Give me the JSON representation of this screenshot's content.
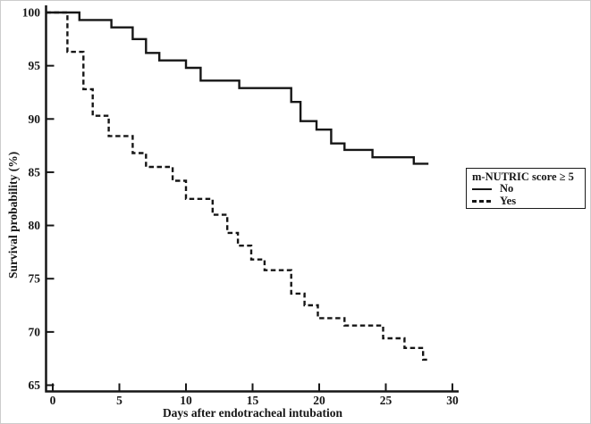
{
  "chart_data": {
    "type": "line",
    "subtype": "kaplan-meier-step",
    "title": "",
    "xlabel": "Days after endotracheal intubation",
    "ylabel": "Survival probability (%)",
    "xlim": [
      0,
      30
    ],
    "ylim": [
      65,
      100
    ],
    "xticks": [
      0,
      5,
      10,
      15,
      20,
      25,
      30
    ],
    "yticks": [
      65,
      70,
      75,
      80,
      85,
      90,
      95,
      100
    ],
    "grid": false,
    "line_color": "#161616",
    "legend": {
      "title": "m-NUTRIC score ≥ 5",
      "position": "right-middle",
      "items": [
        {
          "label": "No",
          "line_style": "solid"
        },
        {
          "label": "Yes",
          "line_style": "dashed"
        }
      ]
    },
    "series": [
      {
        "name": "No",
        "line_style": "solid",
        "step_points": [
          [
            0,
            100
          ],
          [
            2,
            99.3
          ],
          [
            4.4,
            98.6
          ],
          [
            6,
            97.5
          ],
          [
            7,
            96.2
          ],
          [
            8,
            95.5
          ],
          [
            10,
            94.8
          ],
          [
            11.1,
            93.6
          ],
          [
            14,
            92.9
          ],
          [
            17.9,
            91.6
          ],
          [
            18.6,
            89.8
          ],
          [
            19.8,
            89.0
          ],
          [
            20.9,
            87.7
          ],
          [
            21.9,
            87.1
          ],
          [
            24,
            86.4
          ],
          [
            27.1,
            85.8
          ]
        ],
        "end_day": 28.2
      },
      {
        "name": "Yes",
        "line_style": "dashed",
        "step_points": [
          [
            0,
            100
          ],
          [
            1.1,
            96.3
          ],
          [
            2.3,
            92.8
          ],
          [
            3,
            90.3
          ],
          [
            4.2,
            88.4
          ],
          [
            6,
            86.8
          ],
          [
            7,
            85.5
          ],
          [
            9,
            84.2
          ],
          [
            10,
            82.5
          ],
          [
            12,
            81.0
          ],
          [
            13.1,
            79.3
          ],
          [
            13.9,
            78.1
          ],
          [
            14.9,
            76.8
          ],
          [
            15.9,
            75.8
          ],
          [
            17.9,
            73.6
          ],
          [
            18.9,
            72.5
          ],
          [
            19.9,
            71.3
          ],
          [
            21.9,
            70.6
          ],
          [
            24.8,
            69.4
          ],
          [
            26.4,
            68.5
          ],
          [
            27.8,
            67.4
          ]
        ],
        "end_day": 28.1
      }
    ]
  },
  "colors": {
    "background": "#ffffff",
    "figure_border": "#cccccc",
    "ink": "#161616"
  }
}
